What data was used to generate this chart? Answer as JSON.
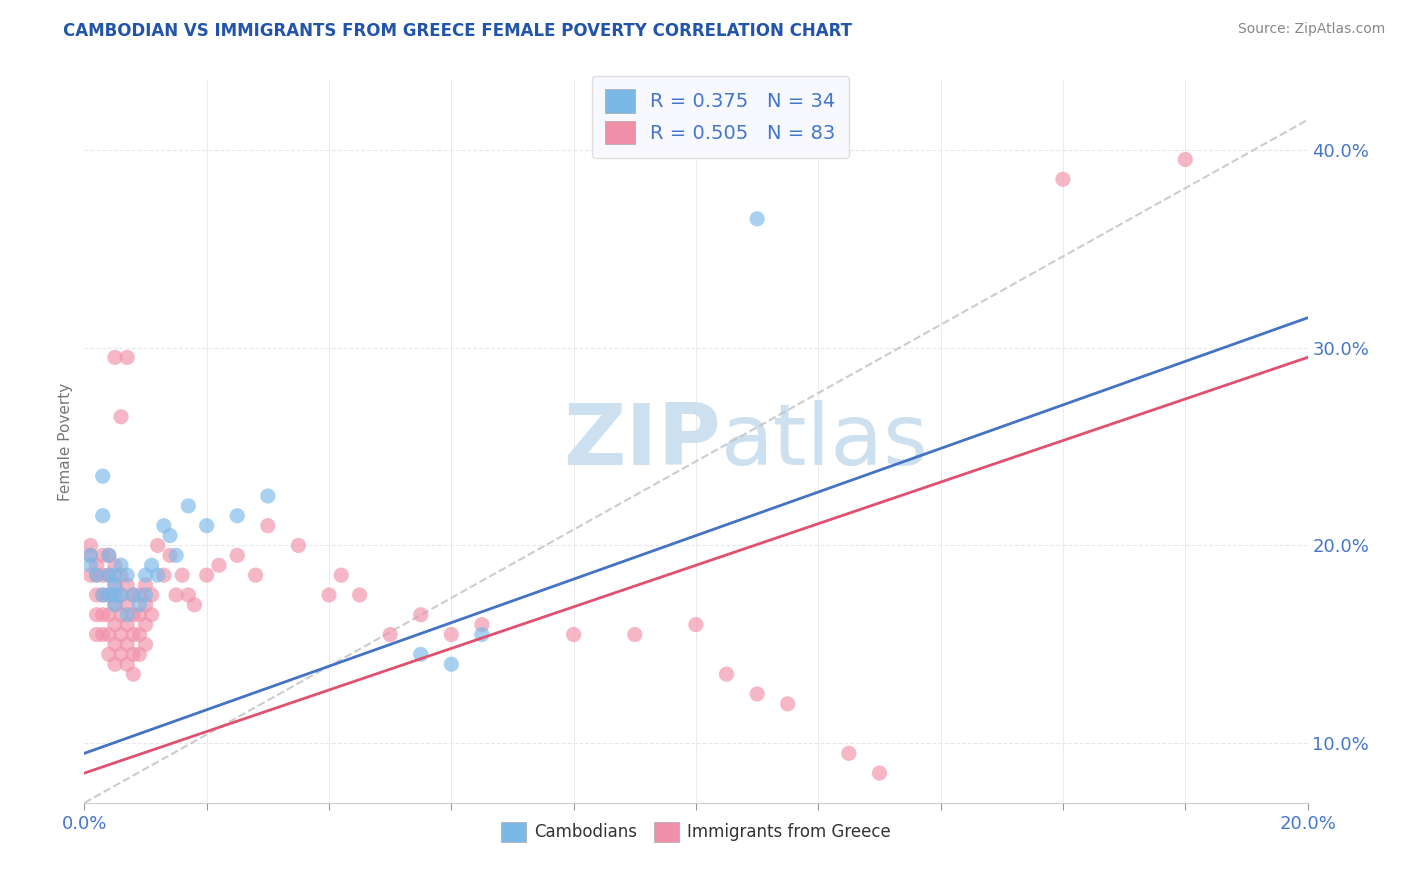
{
  "title": "CAMBODIAN VS IMMIGRANTS FROM GREECE FEMALE POVERTY CORRELATION CHART",
  "source": "Source: ZipAtlas.com",
  "ylabel": "Female Poverty",
  "legend_entries": [
    {
      "label": "Cambodians",
      "color": "#a8c8e8"
    },
    {
      "label": "Immigrants from Greece",
      "color": "#f4a0b8"
    }
  ],
  "r1": 0.375,
  "n1": 34,
  "r2": 0.505,
  "n2": 83,
  "xlim": [
    0.0,
    0.2
  ],
  "ylim": [
    0.07,
    0.435
  ],
  "blue_scatter": [
    [
      0.001,
      0.19
    ],
    [
      0.001,
      0.195
    ],
    [
      0.002,
      0.185
    ],
    [
      0.003,
      0.235
    ],
    [
      0.003,
      0.215
    ],
    [
      0.003,
      0.175
    ],
    [
      0.004,
      0.195
    ],
    [
      0.004,
      0.185
    ],
    [
      0.004,
      0.175
    ],
    [
      0.005,
      0.185
    ],
    [
      0.005,
      0.18
    ],
    [
      0.005,
      0.175
    ],
    [
      0.005,
      0.17
    ],
    [
      0.006,
      0.19
    ],
    [
      0.006,
      0.175
    ],
    [
      0.007,
      0.185
    ],
    [
      0.007,
      0.165
    ],
    [
      0.008,
      0.175
    ],
    [
      0.009,
      0.17
    ],
    [
      0.01,
      0.185
    ],
    [
      0.01,
      0.175
    ],
    [
      0.011,
      0.19
    ],
    [
      0.012,
      0.185
    ],
    [
      0.013,
      0.21
    ],
    [
      0.014,
      0.205
    ],
    [
      0.015,
      0.195
    ],
    [
      0.017,
      0.22
    ],
    [
      0.02,
      0.21
    ],
    [
      0.025,
      0.215
    ],
    [
      0.03,
      0.225
    ],
    [
      0.055,
      0.145
    ],
    [
      0.06,
      0.14
    ],
    [
      0.065,
      0.155
    ],
    [
      0.11,
      0.365
    ]
  ],
  "pink_scatter": [
    [
      0.001,
      0.2
    ],
    [
      0.001,
      0.195
    ],
    [
      0.001,
      0.185
    ],
    [
      0.002,
      0.19
    ],
    [
      0.002,
      0.185
    ],
    [
      0.002,
      0.175
    ],
    [
      0.002,
      0.165
    ],
    [
      0.002,
      0.155
    ],
    [
      0.003,
      0.195
    ],
    [
      0.003,
      0.185
    ],
    [
      0.003,
      0.175
    ],
    [
      0.003,
      0.165
    ],
    [
      0.003,
      0.155
    ],
    [
      0.004,
      0.195
    ],
    [
      0.004,
      0.185
    ],
    [
      0.004,
      0.175
    ],
    [
      0.004,
      0.165
    ],
    [
      0.004,
      0.155
    ],
    [
      0.004,
      0.145
    ],
    [
      0.005,
      0.19
    ],
    [
      0.005,
      0.18
    ],
    [
      0.005,
      0.17
    ],
    [
      0.005,
      0.16
    ],
    [
      0.005,
      0.15
    ],
    [
      0.005,
      0.14
    ],
    [
      0.005,
      0.295
    ],
    [
      0.006,
      0.185
    ],
    [
      0.006,
      0.175
    ],
    [
      0.006,
      0.165
    ],
    [
      0.006,
      0.155
    ],
    [
      0.006,
      0.145
    ],
    [
      0.006,
      0.265
    ],
    [
      0.007,
      0.18
    ],
    [
      0.007,
      0.17
    ],
    [
      0.007,
      0.16
    ],
    [
      0.007,
      0.15
    ],
    [
      0.007,
      0.14
    ],
    [
      0.007,
      0.295
    ],
    [
      0.008,
      0.175
    ],
    [
      0.008,
      0.165
    ],
    [
      0.008,
      0.155
    ],
    [
      0.008,
      0.145
    ],
    [
      0.008,
      0.135
    ],
    [
      0.009,
      0.175
    ],
    [
      0.009,
      0.165
    ],
    [
      0.009,
      0.155
    ],
    [
      0.009,
      0.145
    ],
    [
      0.01,
      0.18
    ],
    [
      0.01,
      0.17
    ],
    [
      0.01,
      0.16
    ],
    [
      0.01,
      0.15
    ],
    [
      0.011,
      0.175
    ],
    [
      0.011,
      0.165
    ],
    [
      0.012,
      0.2
    ],
    [
      0.013,
      0.185
    ],
    [
      0.014,
      0.195
    ],
    [
      0.015,
      0.175
    ],
    [
      0.016,
      0.185
    ],
    [
      0.017,
      0.175
    ],
    [
      0.018,
      0.17
    ],
    [
      0.02,
      0.185
    ],
    [
      0.022,
      0.19
    ],
    [
      0.025,
      0.195
    ],
    [
      0.028,
      0.185
    ],
    [
      0.03,
      0.21
    ],
    [
      0.035,
      0.2
    ],
    [
      0.04,
      0.175
    ],
    [
      0.042,
      0.185
    ],
    [
      0.045,
      0.175
    ],
    [
      0.05,
      0.155
    ],
    [
      0.055,
      0.165
    ],
    [
      0.06,
      0.155
    ],
    [
      0.065,
      0.16
    ],
    [
      0.08,
      0.155
    ],
    [
      0.09,
      0.155
    ],
    [
      0.1,
      0.16
    ],
    [
      0.105,
      0.135
    ],
    [
      0.11,
      0.125
    ],
    [
      0.115,
      0.12
    ],
    [
      0.125,
      0.095
    ],
    [
      0.13,
      0.085
    ],
    [
      0.16,
      0.385
    ],
    [
      0.18,
      0.395
    ]
  ],
  "blue_line_x": [
    0.0,
    0.2
  ],
  "blue_line_y": [
    0.095,
    0.315
  ],
  "pink_line_x": [
    0.0,
    0.2
  ],
  "pink_line_y": [
    0.085,
    0.295
  ],
  "ref_line_x": [
    0.0,
    0.2
  ],
  "ref_line_y": [
    0.07,
    0.415
  ],
  "title_color": "#2255aa",
  "blue_dot_color": "#7ab8e8",
  "pink_dot_color": "#f090a8",
  "blue_line_color": "#4472c4",
  "pink_line_color": "#e05070",
  "ref_line_color": "#c0c0c0",
  "source_color": "#888888",
  "axis_label_color": "#4477cc",
  "watermark_color": "#cce0f0",
  "background_color": "#ffffff",
  "plot_bg_color": "#ffffff",
  "grid_color": "#e8e8e8",
  "yticks": [
    0.1,
    0.2,
    0.3,
    0.4
  ],
  "xticks": [
    0.0,
    0.02,
    0.04,
    0.06,
    0.08,
    0.1,
    0.12,
    0.14,
    0.16,
    0.18,
    0.2
  ]
}
